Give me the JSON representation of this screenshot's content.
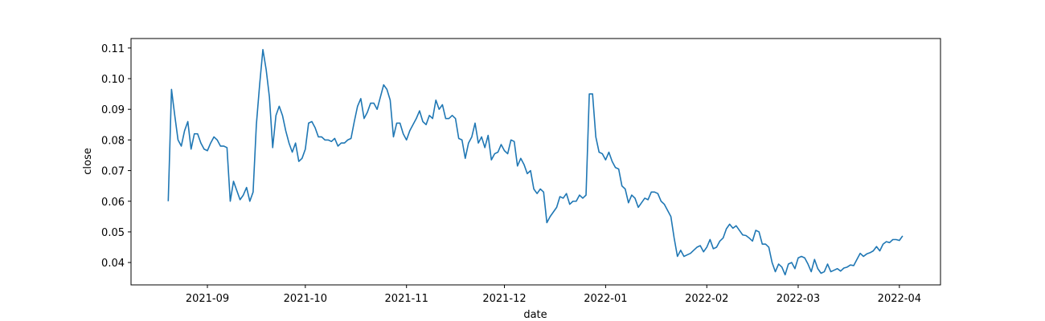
{
  "chart_data": {
    "type": "line",
    "x_label": "date",
    "y_label": "close",
    "xlim": [
      18847.6,
      19095.6
    ],
    "ylim": [
      0.0327,
      0.1131
    ],
    "xticks": [
      {
        "value": 18871,
        "label": "2021-09"
      },
      {
        "value": 18901,
        "label": "2021-10"
      },
      {
        "value": 18932,
        "label": "2021-11"
      },
      {
        "value": 18962,
        "label": "2021-12"
      },
      {
        "value": 18993,
        "label": "2022-01"
      },
      {
        "value": 19024,
        "label": "2022-02"
      },
      {
        "value": 19052,
        "label": "2022-03"
      },
      {
        "value": 19083,
        "label": "2022-04"
      }
    ],
    "yticks": [
      0.04,
      0.05,
      0.06,
      0.07,
      0.08,
      0.09,
      {
        "value": 0.1,
        "label": "0.10"
      },
      0.11
    ],
    "color": "#1f77b4",
    "x": [
      18859,
      18860,
      18861,
      18862,
      18863,
      18864,
      18865,
      18866,
      18867,
      18868,
      18869,
      18870,
      18871,
      18872,
      18873,
      18874,
      18875,
      18876,
      18877,
      18878,
      18879,
      18880,
      18881,
      18882,
      18883,
      18884,
      18885,
      18886,
      18887,
      18888,
      18889,
      18890,
      18891,
      18892,
      18893,
      18894,
      18895,
      18896,
      18897,
      18898,
      18899,
      18900,
      18901,
      18902,
      18903,
      18904,
      18905,
      18906,
      18907,
      18908,
      18909,
      18910,
      18911,
      18912,
      18913,
      18914,
      18915,
      18916,
      18917,
      18918,
      18919,
      18920,
      18921,
      18922,
      18923,
      18924,
      18925,
      18926,
      18927,
      18928,
      18929,
      18930,
      18931,
      18932,
      18933,
      18934,
      18935,
      18936,
      18937,
      18938,
      18939,
      18940,
      18941,
      18942,
      18943,
      18944,
      18945,
      18946,
      18947,
      18948,
      18949,
      18950,
      18951,
      18952,
      18953,
      18954,
      18955,
      18956,
      18957,
      18958,
      18959,
      18960,
      18961,
      18962,
      18963,
      18964,
      18965,
      18966,
      18967,
      18968,
      18969,
      18970,
      18971,
      18972,
      18973,
      18974,
      18975,
      18976,
      18977,
      18978,
      18979,
      18980,
      18981,
      18982,
      18983,
      18984,
      18985,
      18986,
      18987,
      18988,
      18989,
      18990,
      18991,
      18992,
      18993,
      18994,
      18995,
      18996,
      18997,
      18998,
      18999,
      19000,
      19001,
      19002,
      19003,
      19004,
      19005,
      19006,
      19007,
      19008,
      19009,
      19010,
      19011,
      19012,
      19013,
      19014,
      19015,
      19016,
      19017,
      19018,
      19019,
      19020,
      19021,
      19022,
      19023,
      19024,
      19025,
      19026,
      19027,
      19028,
      19029,
      19030,
      19031,
      19032,
      19033,
      19034,
      19035,
      19036,
      19037,
      19038,
      19039,
      19040,
      19041,
      19042,
      19043,
      19044,
      19045,
      19046,
      19047,
      19048,
      19049,
      19050,
      19051,
      19052,
      19053,
      19054,
      19055,
      19056,
      19057,
      19058,
      19059,
      19060,
      19061,
      19062,
      19063,
      19064,
      19065,
      19066,
      19067,
      19068,
      19069,
      19070,
      19071,
      19072,
      19073,
      19074,
      19075,
      19076,
      19077,
      19078,
      19079,
      19080,
      19081,
      19082,
      19083,
      19084
    ],
    "values": [
      0.06,
      0.0965,
      0.088,
      0.08,
      0.078,
      0.083,
      0.086,
      0.077,
      0.082,
      0.082,
      0.079,
      0.077,
      0.0765,
      0.079,
      0.081,
      0.08,
      0.078,
      0.078,
      0.0775,
      0.06,
      0.0665,
      0.0635,
      0.0605,
      0.062,
      0.0645,
      0.06,
      0.063,
      0.085,
      0.098,
      0.1095,
      0.103,
      0.094,
      0.0775,
      0.088,
      0.091,
      0.088,
      0.083,
      0.079,
      0.076,
      0.079,
      0.073,
      0.074,
      0.077,
      0.0855,
      0.086,
      0.084,
      0.081,
      0.081,
      0.08,
      0.08,
      0.0795,
      0.0805,
      0.078,
      0.079,
      0.079,
      0.08,
      0.0805,
      0.086,
      0.091,
      0.0935,
      0.087,
      0.089,
      0.092,
      0.092,
      0.09,
      0.094,
      0.098,
      0.0965,
      0.093,
      0.081,
      0.0855,
      0.0855,
      0.082,
      0.08,
      0.083,
      0.085,
      0.087,
      0.0895,
      0.086,
      0.085,
      0.088,
      0.087,
      0.093,
      0.09,
      0.0915,
      0.087,
      0.087,
      0.088,
      0.087,
      0.0805,
      0.08,
      0.074,
      0.079,
      0.081,
      0.0855,
      0.079,
      0.081,
      0.0775,
      0.0815,
      0.0735,
      0.0755,
      0.076,
      0.0785,
      0.0765,
      0.0755,
      0.08,
      0.0795,
      0.0715,
      0.074,
      0.072,
      0.069,
      0.07,
      0.064,
      0.0625,
      0.064,
      0.063,
      0.053,
      0.055,
      0.0565,
      0.058,
      0.0615,
      0.061,
      0.0625,
      0.059,
      0.06,
      0.06,
      0.062,
      0.061,
      0.062,
      0.095,
      0.095,
      0.081,
      0.076,
      0.0755,
      0.0735,
      0.076,
      0.073,
      0.071,
      0.0705,
      0.065,
      0.064,
      0.0595,
      0.062,
      0.061,
      0.058,
      0.0595,
      0.061,
      0.0605,
      0.063,
      0.063,
      0.0625,
      0.06,
      0.059,
      0.057,
      0.055,
      0.048,
      0.042,
      0.044,
      0.042,
      0.0425,
      0.043,
      0.044,
      0.045,
      0.0455,
      0.0435,
      0.045,
      0.0475,
      0.0445,
      0.045,
      0.047,
      0.048,
      0.051,
      0.0525,
      0.0512,
      0.052,
      0.0505,
      0.049,
      0.0488,
      0.048,
      0.047,
      0.0505,
      0.05,
      0.046,
      0.046,
      0.045,
      0.04,
      0.037,
      0.0395,
      0.0385,
      0.036,
      0.0395,
      0.04,
      0.038,
      0.0415,
      0.042,
      0.0415,
      0.0395,
      0.037,
      0.041,
      0.038,
      0.0365,
      0.037,
      0.0395,
      0.037,
      0.0375,
      0.038,
      0.0372,
      0.0382,
      0.0385,
      0.0392,
      0.039,
      0.041,
      0.043,
      0.042,
      0.0428,
      0.0432,
      0.0438,
      0.0452,
      0.0438,
      0.046,
      0.0468,
      0.0465,
      0.0475,
      0.0475,
      0.0472,
      0.0487
    ]
  }
}
